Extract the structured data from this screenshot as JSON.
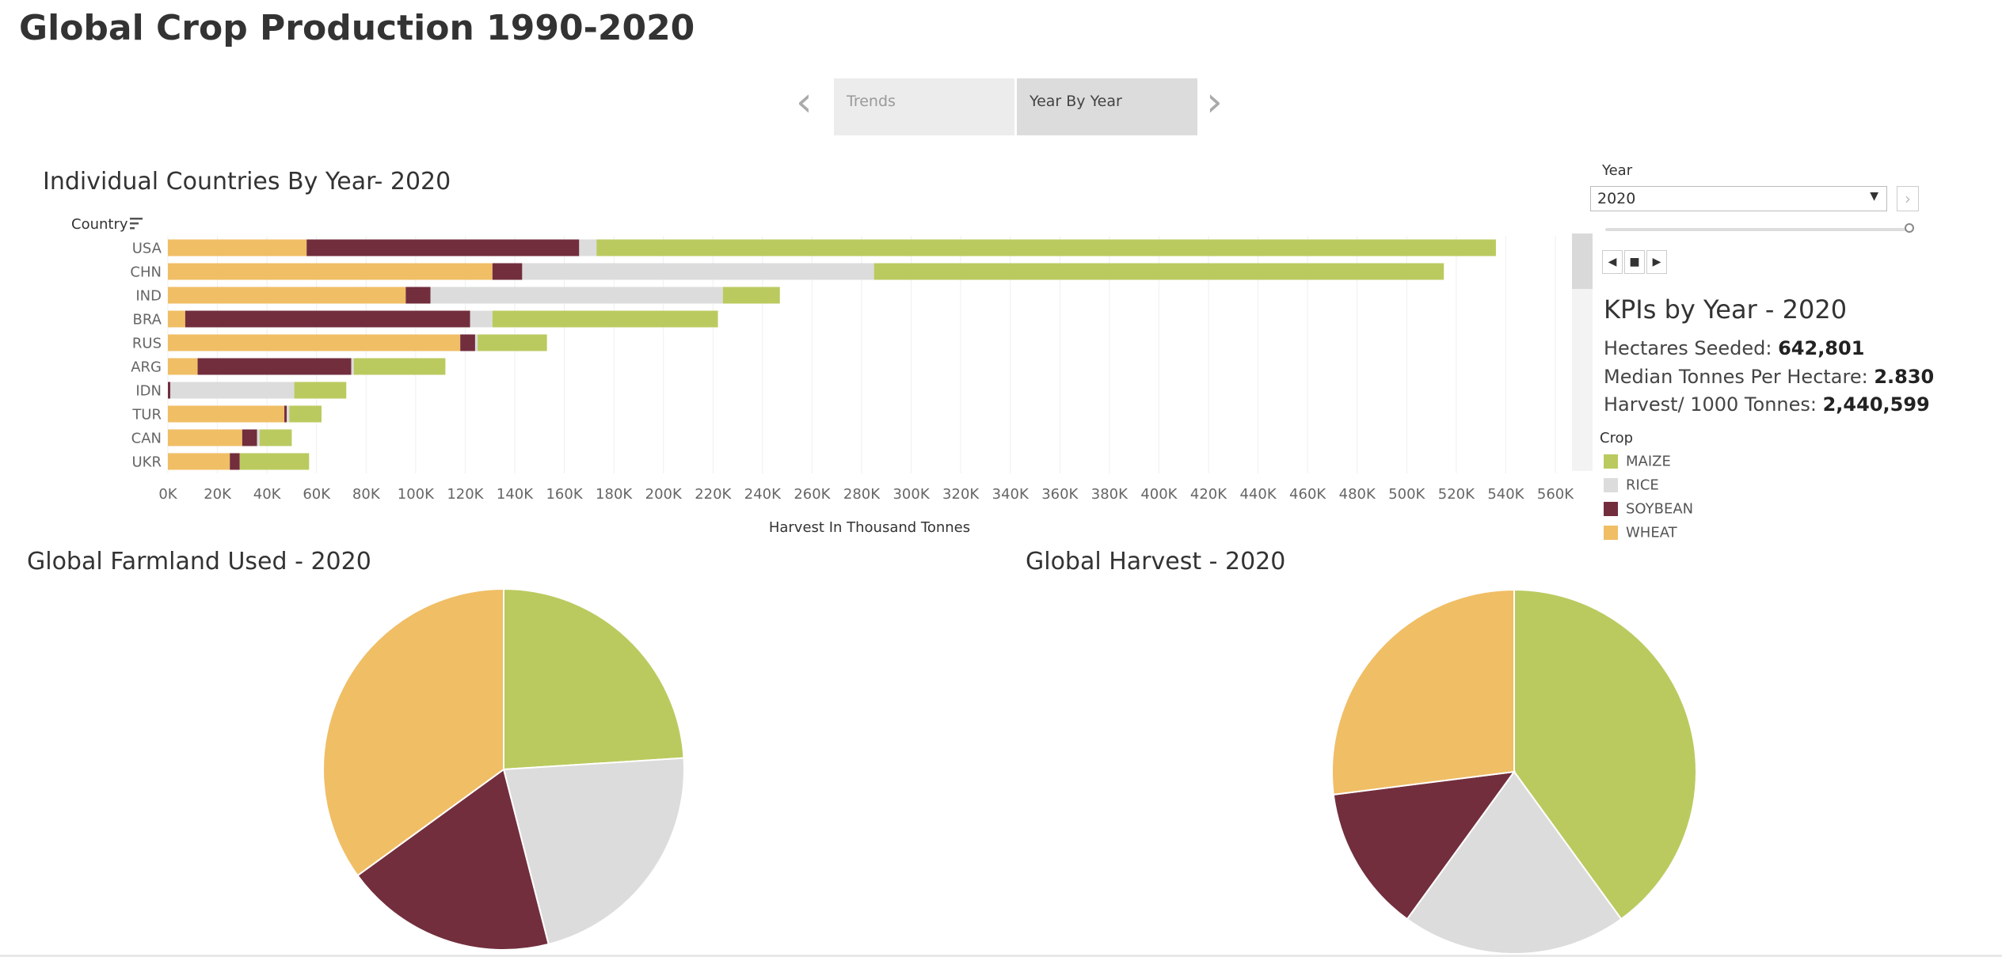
{
  "page": {
    "title": "Global Crop Production 1990-2020"
  },
  "tabs": [
    {
      "label": "Trends",
      "active": false
    },
    {
      "label": "Year By Year",
      "active": true
    }
  ],
  "colors": {
    "MAIZE": "#bbca5f",
    "RICE": "#dcdcdc",
    "SOYBEAN": "#722e3d",
    "WHEAT": "#f0be65"
  },
  "bar_section": {
    "title": "Individual Countries By Year- 2020",
    "country_header": "Country",
    "filter_icon": "sort-icon"
  },
  "year_control": {
    "label": "Year",
    "value": "2020",
    "prev_icon": "chevron-left-icon",
    "next_icon": "chevron-right-icon",
    "dropdown_icon": "caret-down-icon"
  },
  "kpi": {
    "title": "KPIs by Year - 2020",
    "lines": [
      {
        "label": "Hectares Seeded:",
        "value": "642,801"
      },
      {
        "label": "Median Tonnes Per Hectare:",
        "value": "2.830"
      },
      {
        "label": "Harvest/ 1000 Tonnes:",
        "value": "2,440,599"
      }
    ]
  },
  "legend": {
    "title": "Crop",
    "items": [
      "MAIZE",
      "RICE",
      "SOYBEAN",
      "WHEAT"
    ]
  },
  "pie_titles": {
    "farmland": "Global Farmland Used - 2020",
    "harvest": "Global Harvest - 2020"
  },
  "chart_data": [
    {
      "type": "bar",
      "orientation": "horizontal",
      "stacked": true,
      "title": "Individual Countries By Year- 2020",
      "categories": [
        "USA",
        "CHN",
        "IND",
        "BRA",
        "RUS",
        "ARG",
        "IDN",
        "TUR",
        "CAN",
        "UKR"
      ],
      "series": [
        {
          "name": "WHEAT",
          "values": [
            56000,
            131000,
            96000,
            7000,
            118000,
            12000,
            0,
            47000,
            30000,
            25000
          ]
        },
        {
          "name": "SOYBEAN",
          "values": [
            110000,
            12000,
            10000,
            115000,
            6000,
            62000,
            1000,
            1000,
            6000,
            4000
          ]
        },
        {
          "name": "RICE",
          "values": [
            7000,
            142000,
            118000,
            9000,
            1000,
            1000,
            50000,
            1000,
            1000,
            0
          ]
        },
        {
          "name": "MAIZE",
          "values": [
            363000,
            230000,
            23000,
            91000,
            28000,
            37000,
            21000,
            13000,
            13000,
            28000
          ]
        }
      ],
      "xlabel": "Harvest In Thousand Tonnes",
      "xlim": [
        0,
        560000
      ],
      "xticks": [
        "0K",
        "20K",
        "40K",
        "60K",
        "80K",
        "100K",
        "120K",
        "140K",
        "160K",
        "180K",
        "200K",
        "220K",
        "240K",
        "260K",
        "280K",
        "300K",
        "320K",
        "340K",
        "360K",
        "380K",
        "400K",
        "420K",
        "440K",
        "460K",
        "480K",
        "500K",
        "520K",
        "540K",
        "560K"
      ],
      "grid": true
    },
    {
      "type": "pie",
      "title": "Global Farmland Used - 2020",
      "labels": [
        "MAIZE",
        "RICE",
        "SOYBEAN",
        "WHEAT"
      ],
      "values": [
        24,
        22,
        19,
        35
      ]
    },
    {
      "type": "pie",
      "title": "Global Harvest - 2020",
      "labels": [
        "MAIZE",
        "RICE",
        "SOYBEAN",
        "WHEAT"
      ],
      "values": [
        40,
        20,
        13,
        27
      ]
    }
  ]
}
